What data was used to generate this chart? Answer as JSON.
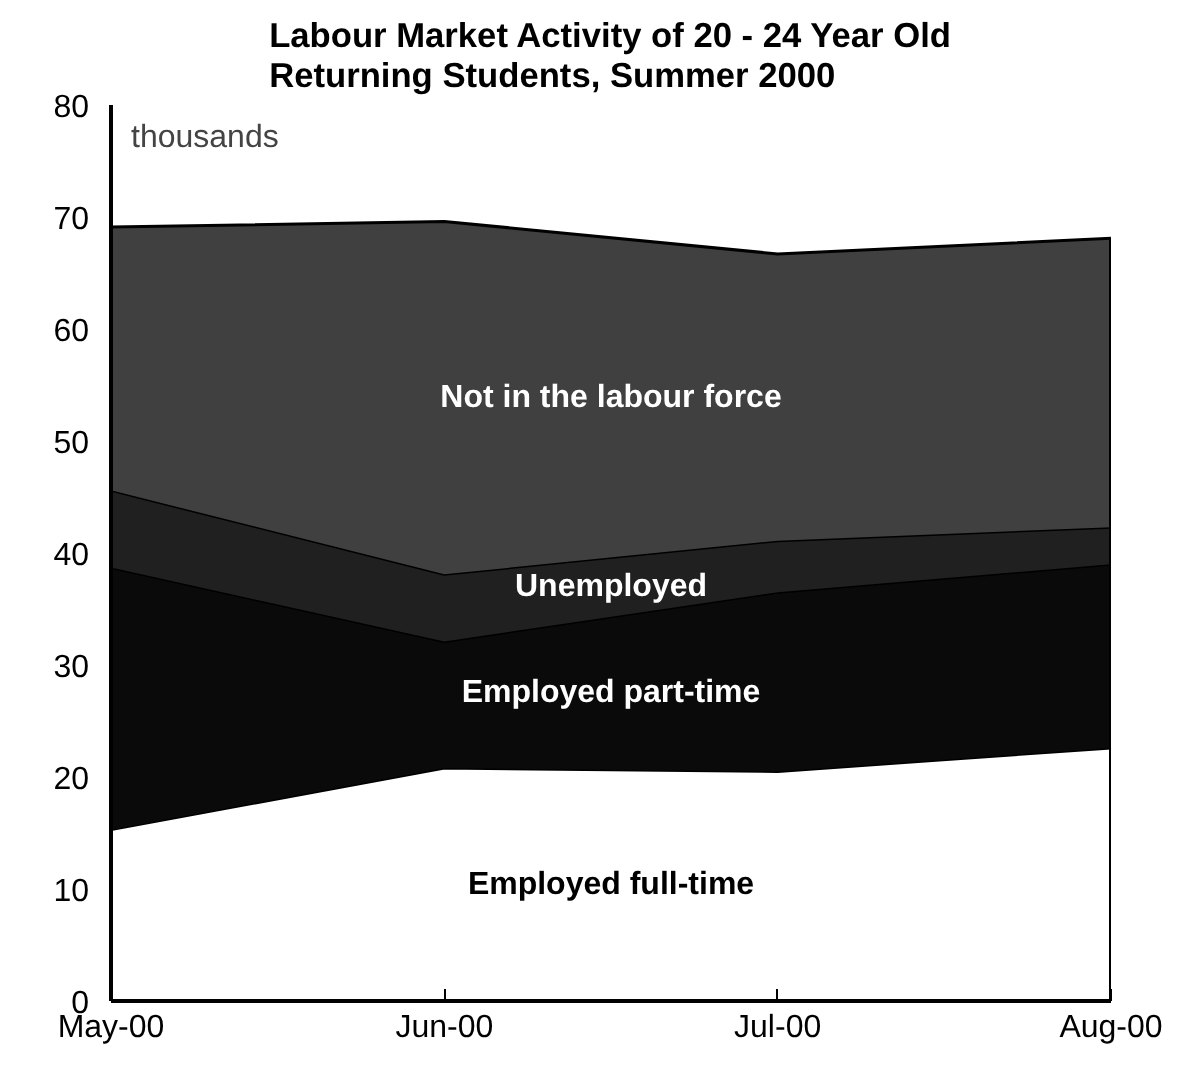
{
  "chart_data": {
    "type": "area",
    "stacked": true,
    "title": "Labour Market Activity of 20 - 24 Year Old\nReturning Students, Summer 2000",
    "ylabel": "thousands",
    "categories": [
      "May-00",
      "Jun-00",
      "Jul-00",
      "Aug-00"
    ],
    "series": [
      {
        "name": "Employed full-time",
        "color": "#ffffff",
        "values": [
          15.3,
          20.8,
          20.5,
          22.6
        ]
      },
      {
        "name": "Employed part-time",
        "color": "#0a0a0a",
        "values": [
          23.4,
          11.3,
          16.0,
          16.4
        ]
      },
      {
        "name": "Unemployed",
        "color": "#202020",
        "values": [
          6.9,
          6.0,
          4.6,
          3.3
        ]
      },
      {
        "name": "Not in the labour force",
        "color": "#404040",
        "values": [
          23.5,
          31.5,
          25.6,
          25.8
        ]
      }
    ],
    "ylim": [
      0,
      80
    ],
    "yticks": [
      0,
      10,
      20,
      30,
      40,
      50,
      60,
      70,
      80
    ],
    "grid": false,
    "legend": false
  }
}
